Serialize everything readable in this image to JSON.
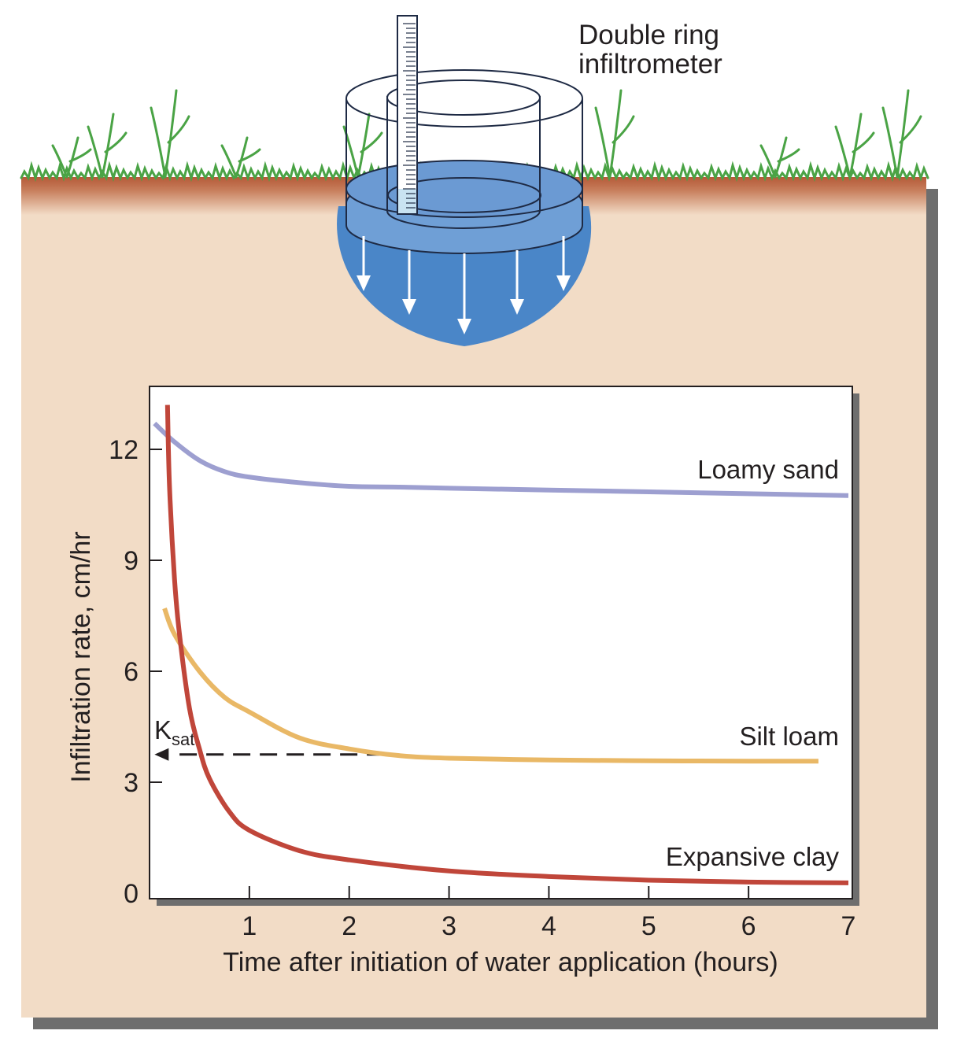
{
  "diagram": {
    "label_line1": "Double ring",
    "label_line2": "infiltrometer"
  },
  "colors": {
    "soil_fill": "#f2dcc6",
    "soil_top": "#b85c3a",
    "shadow": "#6e6e6e",
    "grass": "#4aa345",
    "water_dark": "#4a86c8",
    "water_light": "#6f9fd6",
    "ruler_water": "#c9e3f2"
  },
  "chart_data": {
    "type": "line",
    "title": "",
    "xlabel": "Time after initiation of water application (hours)",
    "ylabel": "Infiltration rate, cm/hr",
    "xlim": [
      0,
      7
    ],
    "ylim": [
      0,
      13.5
    ],
    "xticks": [
      1,
      2,
      3,
      4,
      5,
      6,
      7
    ],
    "yticks": [
      0,
      3,
      6,
      9,
      12
    ],
    "grid": false,
    "legend": "none",
    "series": [
      {
        "name": "Loamy sand",
        "color": "#9d9fd0",
        "x": [
          0.05,
          0.25,
          0.5,
          0.75,
          1.0,
          1.5,
          2.0,
          2.5,
          3.0,
          4.0,
          5.0,
          6.0,
          7.0
        ],
        "y": [
          12.7,
          12.2,
          11.7,
          11.4,
          11.25,
          11.1,
          11.0,
          10.98,
          10.95,
          10.9,
          10.85,
          10.8,
          10.75
        ]
      },
      {
        "name": "Silt loam",
        "color": "#e9b866",
        "x": [
          0.15,
          0.25,
          0.5,
          0.75,
          1.0,
          1.5,
          2.0,
          2.5,
          3.0,
          4.0,
          5.0,
          6.0,
          6.7
        ],
        "y": [
          7.7,
          7.0,
          6.0,
          5.3,
          4.9,
          4.2,
          3.9,
          3.72,
          3.65,
          3.6,
          3.58,
          3.57,
          3.57
        ]
      },
      {
        "name": "Expansive clay",
        "color": "#c0463a",
        "x": [
          0.18,
          0.2,
          0.25,
          0.3,
          0.4,
          0.5,
          0.6,
          0.8,
          1.0,
          1.5,
          2.0,
          3.0,
          4.0,
          5.0,
          6.0,
          7.0
        ],
        "y": [
          13.2,
          11.0,
          8.5,
          7.0,
          5.0,
          3.9,
          3.1,
          2.2,
          1.7,
          1.15,
          0.9,
          0.6,
          0.45,
          0.35,
          0.3,
          0.28
        ]
      }
    ],
    "annotation": {
      "text_main": "K",
      "text_sub": "sat",
      "x_start": 2.35,
      "x_end": 0.05,
      "y": 3.75
    }
  }
}
